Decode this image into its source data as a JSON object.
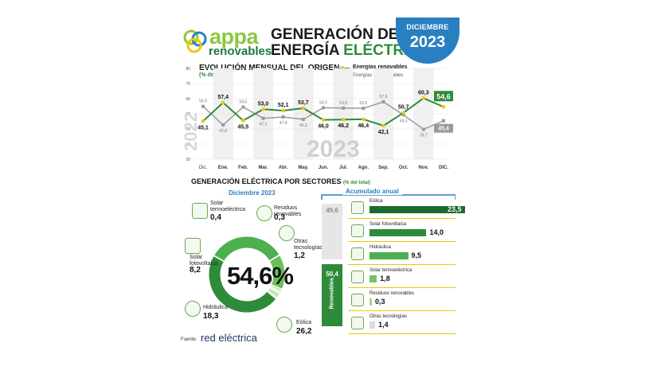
{
  "logo": {
    "name": "appa",
    "sub": "renovables"
  },
  "header": {
    "title_line1": "GENERACIÓN DE",
    "title_line2_a": "ENERGÍA",
    "title_line2_b": "ELÉCTRICA",
    "badge_month": "DICIEMBRE",
    "badge_year": "2023"
  },
  "colors": {
    "renewable": "#2e8b3a",
    "non_renewable": "#9a9a9a",
    "accent": "#f2c500",
    "blue": "#2a7fc1"
  },
  "chart_data": [
    {
      "type": "line",
      "title": "EVOLUCIÓN MENSUAL DEL ORIGEN",
      "subtitle": "(% del total)",
      "categories": [
        "Dic.",
        "Ene.",
        "Feb.",
        "Mar.",
        "Abr.",
        "May.",
        "Jun.",
        "Jul.",
        "Ago.",
        "Sep.",
        "Oct.",
        "Nov.",
        "DIC."
      ],
      "series": [
        {
          "name": "Energías renovables",
          "values": [
            45.1,
            57.4,
            45.5,
            53.0,
            52.1,
            53.7,
            46.0,
            46.2,
            46.4,
            42.1,
            50.7,
            60.3,
            54.6
          ]
        },
        {
          "name": "Energías no renovables",
          "values": [
            54.9,
            42.6,
            54.5,
            47.0,
            47.9,
            46.3,
            54.0,
            53.8,
            53.6,
            57.9,
            49.3,
            39.7,
            45.4
          ]
        }
      ],
      "value_labels_ren": [
        "45,1",
        "57,4",
        "45,5",
        "53,0",
        "52,1",
        "53,7",
        "46,0",
        "46,2",
        "46,4",
        "42,1",
        "50,7",
        "60,3",
        "54,6"
      ],
      "value_labels_nren": [
        "54,9",
        "42,6",
        "54,5",
        "47,0",
        "47,9",
        "46,3",
        "54,0",
        "53,8",
        "53,6",
        "57,9",
        "49,3",
        "39,7",
        "45,4"
      ],
      "ylim": [
        20,
        80
      ],
      "yticks": [
        20,
        30,
        40,
        50,
        60,
        70,
        80
      ],
      "watermark_left": "2022",
      "watermark_right": "2023",
      "legend_position": "top-right"
    },
    {
      "type": "pie",
      "title": "Diciembre 2023",
      "center_label": "54,6%",
      "slices": [
        {
          "name": "Eólica",
          "value": 26.2,
          "label": "26,2"
        },
        {
          "name": "Hidráulica",
          "value": 18.3,
          "label": "18,3"
        },
        {
          "name": "Solar fotovoltaica",
          "value": 8.2,
          "label": "8,2"
        },
        {
          "name": "Solar termoeléctrica",
          "value": 0.4,
          "label": "0,4"
        },
        {
          "name": "Residuos renovables",
          "value": 0.3,
          "label": "0,3"
        },
        {
          "name": "Otras tecnologías",
          "value": 1.2,
          "label": "1,2"
        }
      ]
    },
    {
      "type": "bar",
      "title": "Acumulado anual",
      "categories": [
        "Eólica",
        "Solar fotovoltaica",
        "Hidráulica",
        "Solar termoeléctrica",
        "Residuos renovables",
        "Otras tecnologías"
      ],
      "values": [
        23.5,
        14.0,
        9.5,
        1.8,
        0.3,
        1.4
      ],
      "value_labels": [
        "23,5",
        "14,0",
        "9,5",
        "1,8",
        "0,3",
        "1,4"
      ],
      "stack": {
        "renovables": 50.4,
        "renovables_label": "50,4",
        "no_renovables": 49.6,
        "no_renovables_label": "49,6",
        "renovables_text": "Renovables"
      }
    }
  ],
  "section": {
    "title": "GENERACIÓN ELÉCTRICA POR SECTORES",
    "title_unit": "(% del total)"
  },
  "donut_labels": {
    "solar_termo": "Solar termoeléctrica",
    "residuos": "Residuos renovables",
    "otras": "Otras tecnologías",
    "solar_foto": "Solar fotovoltaica",
    "hidraulica": "Hidráulica",
    "eolica": "Eólica"
  },
  "footer": {
    "fuente": "Fuente:",
    "source_name": "red eléctrica"
  }
}
